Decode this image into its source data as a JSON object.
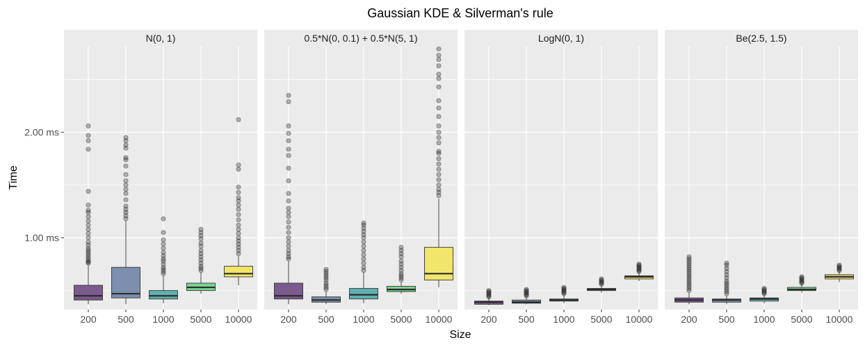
{
  "chart_data": {
    "type": "boxplot",
    "title": "Gaussian KDE & Silverman's rule",
    "xlabel": "Size",
    "ylabel": "Time",
    "categories": [
      "200",
      "500",
      "1000",
      "5000",
      "10000"
    ],
    "category_colors": [
      "#7b5a8f",
      "#7d8fae",
      "#5fb0b0",
      "#79d48f",
      "#f2e56b"
    ],
    "ylim_ms": [
      0.32,
      2.82
    ],
    "yticks": [
      {
        "value": 1.0,
        "label": "1.00 ms"
      },
      {
        "value": 2.0,
        "label": "2.00 ms"
      }
    ],
    "grid": true,
    "legend": "none",
    "panels": [
      {
        "label": "N(0, 1)",
        "boxes": [
          {
            "category": "200",
            "q1": 0.41,
            "median": 0.45,
            "q3": 0.55,
            "whisker_low": 0.37,
            "whisker_high": 0.74,
            "outliers": [
              0.76,
              0.77,
              0.78,
              0.8,
              0.82,
              0.84,
              0.86,
              0.88,
              0.9,
              0.93,
              0.96,
              1.0,
              1.04,
              1.08,
              1.12,
              1.16,
              1.2,
              1.24,
              1.26,
              1.31,
              1.44,
              1.84,
              1.92,
              1.97,
              2.06
            ]
          },
          {
            "category": "500",
            "q1": 0.43,
            "median": 0.47,
            "q3": 0.72,
            "whisker_low": 0.37,
            "whisker_high": 1.16,
            "outliers": [
              1.18,
              1.21,
              1.24,
              1.27,
              1.3,
              1.36,
              1.42,
              1.46,
              1.5,
              1.54,
              1.6,
              1.68,
              1.74,
              1.76,
              1.85,
              1.88,
              1.92,
              1.95
            ]
          },
          {
            "category": "1000",
            "q1": 0.42,
            "median": 0.45,
            "q3": 0.5,
            "whisker_low": 0.38,
            "whisker_high": 0.64,
            "outliers": [
              0.66,
              0.68,
              0.7,
              0.72,
              0.75,
              0.78,
              0.8,
              0.83,
              0.86,
              0.9,
              0.94,
              0.98,
              1.05,
              1.18
            ]
          },
          {
            "category": "5000",
            "q1": 0.5,
            "median": 0.53,
            "q3": 0.57,
            "whisker_low": 0.47,
            "whisker_high": 0.67,
            "outliers": [
              0.69,
              0.71,
              0.73,
              0.76,
              0.79,
              0.82,
              0.85,
              0.88,
              0.92,
              0.95,
              0.99,
              1.02,
              1.05,
              1.08
            ]
          },
          {
            "category": "10000",
            "q1": 0.63,
            "median": 0.66,
            "q3": 0.73,
            "whisker_low": 0.55,
            "whisker_high": 0.83,
            "outliers": [
              0.85,
              0.88,
              0.91,
              0.94,
              0.97,
              1.0,
              1.04,
              1.08,
              1.12,
              1.17,
              1.22,
              1.27,
              1.31,
              1.35,
              1.38,
              1.43,
              1.48,
              1.65,
              1.69,
              2.12
            ]
          }
        ]
      },
      {
        "label": "0.5*N(0, 0.1) + 0.5*N(5, 1)",
        "boxes": [
          {
            "category": "200",
            "q1": 0.42,
            "median": 0.45,
            "q3": 0.57,
            "whisker_low": 0.37,
            "whisker_high": 0.78,
            "outliers": [
              0.8,
              0.82,
              0.85,
              0.88,
              0.92,
              0.96,
              1.0,
              1.05,
              1.1,
              1.15,
              1.2,
              1.24,
              1.28,
              1.35,
              1.42,
              1.54,
              1.66,
              1.78,
              1.84,
              1.92,
              1.99,
              2.06,
              2.29,
              2.35
            ]
          },
          {
            "category": "500",
            "q1": 0.39,
            "median": 0.41,
            "q3": 0.44,
            "whisker_low": 0.37,
            "whisker_high": 0.49,
            "outliers": [
              0.51,
              0.53,
              0.55,
              0.57,
              0.6,
              0.62,
              0.64,
              0.66,
              0.68,
              0.7
            ]
          },
          {
            "category": "1000",
            "q1": 0.42,
            "median": 0.46,
            "q3": 0.52,
            "whisker_low": 0.38,
            "whisker_high": 0.67,
            "outliers": [
              0.69,
              0.72,
              0.76,
              0.8,
              0.84,
              0.88,
              0.92,
              0.96,
              1.0,
              1.03,
              1.06,
              1.09,
              1.12,
              1.14
            ]
          },
          {
            "category": "5000",
            "q1": 0.49,
            "median": 0.51,
            "q3": 0.54,
            "whisker_low": 0.47,
            "whisker_high": 0.58,
            "outliers": [
              0.6,
              0.62,
              0.64,
              0.66,
              0.69,
              0.72,
              0.75,
              0.78,
              0.82,
              0.85,
              0.88,
              0.91
            ]
          },
          {
            "category": "10000",
            "q1": 0.6,
            "median": 0.66,
            "q3": 0.91,
            "whisker_low": 0.53,
            "whisker_high": 1.37,
            "outliers": [
              1.4,
              1.43,
              1.46,
              1.5,
              1.55,
              1.6,
              1.65,
              1.7,
              1.75,
              1.8,
              1.82,
              1.9,
              1.95,
              2.0,
              2.06,
              2.15,
              2.23,
              2.3,
              2.43,
              2.51,
              2.55,
              2.63,
              2.69,
              2.73,
              2.79
            ]
          }
        ]
      },
      {
        "label": "LogN(0, 1)",
        "boxes": [
          {
            "category": "200",
            "q1": 0.37,
            "median": 0.39,
            "q3": 0.4,
            "whisker_low": 0.36,
            "whisker_high": 0.43,
            "outliers": [
              0.44,
              0.45,
              0.46,
              0.47,
              0.48,
              0.49,
              0.5
            ]
          },
          {
            "category": "500",
            "q1": 0.38,
            "median": 0.39,
            "q3": 0.41,
            "whisker_low": 0.37,
            "whisker_high": 0.44,
            "outliers": [
              0.45,
              0.46,
              0.47,
              0.48,
              0.49,
              0.5,
              0.51
            ]
          },
          {
            "category": "1000",
            "q1": 0.4,
            "median": 0.41,
            "q3": 0.42,
            "whisker_low": 0.38,
            "whisker_high": 0.46,
            "outliers": [
              0.47,
              0.48,
              0.49,
              0.5,
              0.51,
              0.52,
              0.53
            ]
          },
          {
            "category": "5000",
            "q1": 0.5,
            "median": 0.51,
            "q3": 0.52,
            "whisker_low": 0.48,
            "whisker_high": 0.55,
            "outliers": [
              0.56,
              0.57,
              0.58,
              0.59,
              0.6,
              0.61
            ]
          },
          {
            "category": "10000",
            "q1": 0.61,
            "median": 0.63,
            "q3": 0.64,
            "whisker_low": 0.59,
            "whisker_high": 0.67,
            "outliers": [
              0.68,
              0.69,
              0.7,
              0.71,
              0.72,
              0.73,
              0.74,
              0.75
            ]
          }
        ]
      },
      {
        "label": "Be(2.5, 1.5)",
        "boxes": [
          {
            "category": "200",
            "q1": 0.39,
            "median": 0.41,
            "q3": 0.43,
            "whisker_low": 0.37,
            "whisker_high": 0.48,
            "outliers": [
              0.5,
              0.52,
              0.54,
              0.56,
              0.58,
              0.6,
              0.62,
              0.64,
              0.66,
              0.68,
              0.7,
              0.72,
              0.74,
              0.76,
              0.78,
              0.8,
              0.82
            ]
          },
          {
            "category": "500",
            "q1": 0.39,
            "median": 0.41,
            "q3": 0.42,
            "whisker_low": 0.37,
            "whisker_high": 0.45,
            "outliers": [
              0.47,
              0.49,
              0.51,
              0.53,
              0.55,
              0.57,
              0.59,
              0.62,
              0.65,
              0.68,
              0.71,
              0.74,
              0.76
            ]
          },
          {
            "category": "1000",
            "q1": 0.4,
            "median": 0.42,
            "q3": 0.43,
            "whisker_low": 0.38,
            "whisker_high": 0.46,
            "outliers": [
              0.47,
              0.48,
              0.49,
              0.5,
              0.51,
              0.52
            ]
          },
          {
            "category": "5000",
            "q1": 0.5,
            "median": 0.51,
            "q3": 0.53,
            "whisker_low": 0.48,
            "whisker_high": 0.56,
            "outliers": [
              0.57,
              0.58,
              0.59,
              0.6,
              0.61,
              0.62,
              0.63
            ]
          },
          {
            "category": "10000",
            "q1": 0.61,
            "median": 0.63,
            "q3": 0.65,
            "whisker_low": 0.58,
            "whisker_high": 0.68,
            "outliers": [
              0.69,
              0.7,
              0.71,
              0.72,
              0.73,
              0.74
            ]
          }
        ]
      }
    ]
  }
}
